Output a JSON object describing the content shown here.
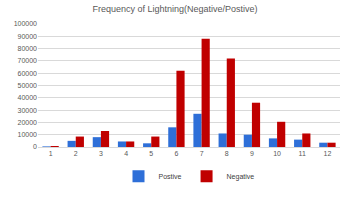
{
  "chart_data": {
    "type": "bar",
    "title": "Frequency of Lightning(Negative/Postive)",
    "categories": [
      "1",
      "2",
      "3",
      "4",
      "5",
      "6",
      "7",
      "8",
      "9",
      "10",
      "11",
      "12"
    ],
    "series": [
      {
        "name": "Postive",
        "color": "#2e6fd8",
        "values": [
          500,
          5000,
          8000,
          4500,
          3000,
          16000,
          27000,
          11000,
          10000,
          7000,
          6000,
          3500
        ]
      },
      {
        "name": "Negative",
        "color": "#c00000",
        "values": [
          800,
          8500,
          13000,
          4500,
          8500,
          62000,
          88000,
          72000,
          36000,
          20500,
          11000,
          3500
        ]
      }
    ],
    "ylim": [
      0,
      100000
    ],
    "yticks": [
      0,
      10000,
      20000,
      30000,
      40000,
      50000,
      60000,
      70000,
      80000,
      90000,
      100000
    ],
    "grid": true,
    "legend": "bottom"
  }
}
